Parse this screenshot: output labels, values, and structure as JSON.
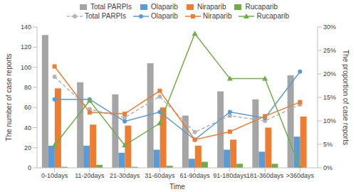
{
  "chart_data": {
    "type": "combo",
    "categories": [
      "0-10days",
      "11-20days",
      "21-30days",
      "31-60days",
      "61-90days",
      "91-180days",
      "181-360days",
      ">360days"
    ],
    "series": [
      {
        "name": "Total PARPIs",
        "type": "bar",
        "color": "#a5a5a5",
        "values": [
          132,
          85,
          73,
          104,
          52,
          76,
          68,
          92
        ]
      },
      {
        "name": "Olaparib",
        "type": "bar",
        "color": "#5b9bd5",
        "values": [
          22,
          22,
          15,
          18,
          9,
          18,
          16,
          31
        ]
      },
      {
        "name": "Niraparib",
        "type": "bar",
        "color": "#ed7d31",
        "values": [
          79,
          43,
          42,
          60,
          22,
          28,
          40,
          51
        ]
      },
      {
        "name": "Rucaparib",
        "type": "bar",
        "color": "#70ad47",
        "values": [
          1,
          3,
          1,
          2,
          6,
          4,
          4,
          0
        ]
      },
      {
        "name": "Total PARPIs",
        "type": "line",
        "axis": "y2",
        "color": "#b4b4b4",
        "marker": "circle",
        "line_style": "dashed",
        "values": [
          19.4,
          12.5,
          10.7,
          15.2,
          7.6,
          11.1,
          10.0,
          13.5
        ]
      },
      {
        "name": "Olaparib",
        "type": "line",
        "axis": "y2",
        "color": "#5b9bd5",
        "marker": "circle",
        "line_style": "solid",
        "values": [
          14.6,
          14.6,
          9.9,
          11.9,
          6.0,
          11.9,
          10.6,
          20.5
        ]
      },
      {
        "name": "Niraparib",
        "type": "line",
        "axis": "y2",
        "color": "#ed7d31",
        "marker": "square",
        "line_style": "solid",
        "values": [
          21.6,
          11.8,
          11.5,
          16.4,
          6.0,
          7.7,
          11.0,
          14.0
        ]
      },
      {
        "name": "Rucaparib",
        "type": "line",
        "axis": "y2",
        "color": "#70ad47",
        "marker": "triangle",
        "line_style": "solid",
        "values": [
          4.8,
          14.3,
          4.8,
          9.5,
          28.6,
          19.0,
          19.0,
          0
        ]
      }
    ],
    "xlabel": "Time",
    "ylabel": "The number of case reports",
    "y2label": "The proportion of case reports",
    "ylim": [
      0,
      140
    ],
    "yticks": [
      0,
      20,
      40,
      60,
      80,
      100,
      120,
      140
    ],
    "y2lim": [
      0,
      30
    ],
    "y2ticks": [
      {
        "value": 0,
        "label": "0%"
      },
      {
        "value": 5,
        "label": "5%"
      },
      {
        "value": 10,
        "label": "10%"
      },
      {
        "value": 15,
        "label": "15%"
      },
      {
        "value": 20,
        "label": "20%"
      },
      {
        "value": 25,
        "label": "25%"
      },
      {
        "value": 30,
        "label": "30%"
      }
    ],
    "legend": "top",
    "grid": false
  }
}
